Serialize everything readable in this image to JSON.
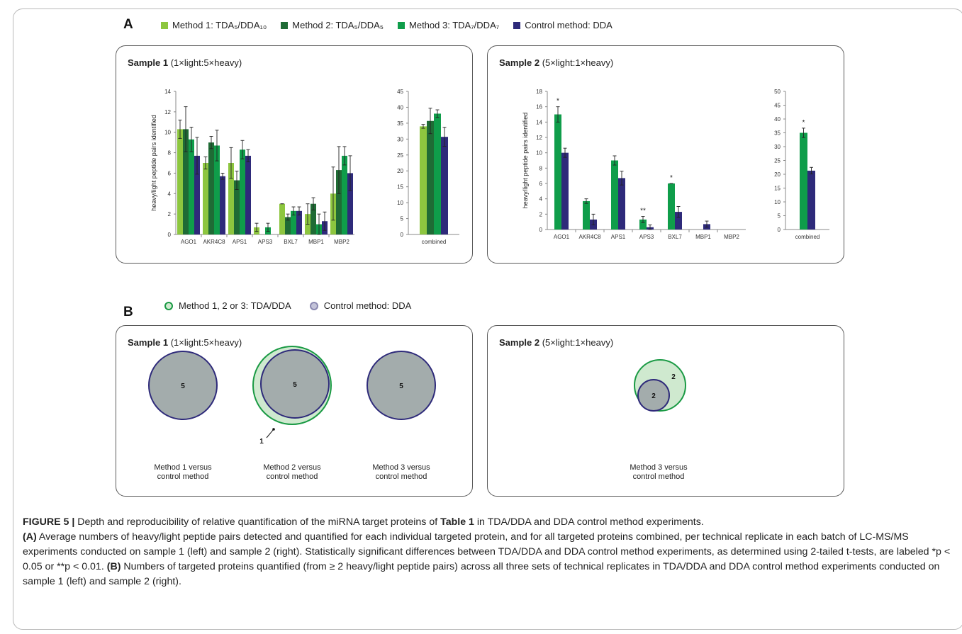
{
  "panel_a_label": "A",
  "panel_b_label": "B",
  "legend_a": [
    {
      "label": "Method 1: TDA₅/DDA₁₀",
      "color": "#8dc63f"
    },
    {
      "label": "Method 2: TDA₅/DDA₅",
      "color": "#1f6b35"
    },
    {
      "label": "Method 3: TDA₇/DDA₇",
      "color": "#0f9d4a"
    },
    {
      "label": "Control method: DDA",
      "color": "#2e2a7a"
    }
  ],
  "legend_b": [
    {
      "label": "Method 1, 2 or 3: TDA/DDA",
      "fill": "#cfe9cf",
      "stroke": "#1a9a44"
    },
    {
      "label": "Control method: DDA",
      "fill": "#c3c3d8",
      "stroke": "#8a88b0"
    }
  ],
  "samples": {
    "s1_name": "Sample 1",
    "s1_ratio": "(1×light:5×heavy)",
    "s2_name": "Sample 2",
    "s2_ratio": "(5×light:1×heavy)"
  },
  "chart_data": [
    {
      "type": "bar",
      "title": "Sample 1 (1×light:5×heavy)",
      "ylabel": "heavy/light peptide pairs identified",
      "categories": [
        "AGO1",
        "AKR4C8",
        "APS1",
        "APS3",
        "BXL7",
        "MBP1",
        "MBP2"
      ],
      "ylim": [
        0,
        14
      ],
      "yticks": [
        0,
        2,
        4,
        6,
        8,
        10,
        12,
        14
      ],
      "series": [
        {
          "name": "Method 1: TDA5/DDA10",
          "values": [
            10.3,
            7.0,
            7.0,
            0.7,
            3.0,
            2.0,
            4.0
          ],
          "errors": [
            0.9,
            0.6,
            1.5,
            0.4,
            0.0,
            1.0,
            2.6
          ]
        },
        {
          "name": "Method 2: TDA5/DDA5",
          "values": [
            10.3,
            9.0,
            5.3,
            0.0,
            1.7,
            3.0,
            6.3
          ],
          "errors": [
            2.2,
            0.6,
            0.9,
            0.0,
            0.3,
            0.6,
            2.3
          ]
        },
        {
          "name": "Method 3: TDA7/DDA7",
          "values": [
            9.3,
            8.7,
            8.3,
            0.7,
            2.3,
            1.0,
            7.7
          ],
          "errors": [
            1.2,
            1.5,
            0.9,
            0.4,
            0.4,
            1.0,
            0.9
          ]
        },
        {
          "name": "Control method: DDA",
          "values": [
            7.7,
            5.7,
            7.7,
            0.0,
            2.3,
            1.3,
            6.0
          ],
          "errors": [
            1.8,
            0.3,
            0.6,
            0.0,
            0.4,
            0.9,
            1.7
          ]
        }
      ]
    },
    {
      "type": "bar",
      "categories": [
        "combined"
      ],
      "ylim": [
        0,
        45
      ],
      "yticks": [
        0,
        5,
        10,
        15,
        20,
        25,
        30,
        35,
        40,
        45
      ],
      "series": [
        {
          "name": "Method 1: TDA5/DDA10",
          "values": [
            34.0
          ],
          "errors": [
            0.6
          ]
        },
        {
          "name": "Method 2: TDA5/DDA5",
          "values": [
            35.7
          ],
          "errors": [
            4.0
          ]
        },
        {
          "name": "Method 3: TDA7/DDA7",
          "values": [
            38.0
          ],
          "errors": [
            1.2
          ]
        },
        {
          "name": "Control method: DDA",
          "values": [
            30.7
          ],
          "errors": [
            3.0
          ]
        }
      ]
    },
    {
      "type": "bar",
      "title": "Sample 2 (5×light:1×heavy)",
      "ylabel": "heavy/light peptide pairs identified",
      "categories": [
        "AGO1",
        "AKR4C8",
        "APS1",
        "APS3",
        "BXL7",
        "MBP1",
        "MBP2"
      ],
      "ylim": [
        0,
        18
      ],
      "yticks": [
        0,
        2,
        4,
        6,
        8,
        10,
        12,
        14,
        16,
        18
      ],
      "series": [
        {
          "name": "Method 3: TDA7/DDA7",
          "values": [
            15.0,
            3.7,
            9.0,
            1.3,
            6.0,
            0.0,
            0.0
          ],
          "errors": [
            1.0,
            0.3,
            0.6,
            0.4,
            0.0,
            0.0,
            0.0
          ]
        },
        {
          "name": "Control method: DDA",
          "values": [
            10.0,
            1.3,
            6.7,
            0.3,
            2.3,
            0.7,
            0.0
          ],
          "errors": [
            0.6,
            0.7,
            0.9,
            0.3,
            0.7,
            0.4,
            0.0
          ]
        }
      ],
      "annotations": [
        "*",
        "",
        "",
        "**",
        "*",
        "",
        ""
      ]
    },
    {
      "type": "bar",
      "categories": [
        "combined"
      ],
      "ylim": [
        0,
        50
      ],
      "yticks": [
        0,
        5,
        10,
        15,
        20,
        25,
        30,
        35,
        40,
        45,
        50
      ],
      "series": [
        {
          "name": "Method 3: TDA7/DDA7",
          "values": [
            35.0
          ],
          "errors": [
            1.7
          ]
        },
        {
          "name": "Control method: DDA",
          "values": [
            21.3
          ],
          "errors": [
            1.2
          ]
        }
      ],
      "annotations": [
        "*"
      ]
    }
  ],
  "venn_s1": [
    {
      "label": "Method 1 versus\ncontrol method",
      "center": "5",
      "extra": ""
    },
    {
      "label": "Method 2 versus\ncontrol method",
      "center": "5",
      "extra": "1"
    },
    {
      "label": "Method 3 versus\ncontrol method",
      "center": "5",
      "extra": ""
    }
  ],
  "venn_s2": [
    {
      "label": "Method 3 versus\ncontrol method",
      "center": "2",
      "extra": "2"
    }
  ],
  "caption": {
    "fig_label": "FIGURE 5 |",
    "line1_a": " Depth and reproducibility of relative quantification of the miRNA target proteins of ",
    "table_ref": "Table 1",
    "line1_b": " in TDA/DDA and DDA control method experiments.",
    "a_label": "(A)",
    "a_text": " Average numbers of heavy/light peptide pairs detected and quantified for each individual targeted protein, and for all targeted proteins combined, per technical replicate in each batch of LC-MS/MS experiments conducted on sample 1 (left) and sample 2 (right). Statistically significant differences between TDA/DDA and DDA control method experiments, as determined using 2-tailed t-tests, are labeled *p < 0.05 or **p < 0.01.",
    "b_label": "(B)",
    "b_text": " Numbers of targeted proteins quantified (from ≥ 2 heavy/light peptide pairs) across all three sets of technical replicates in TDA/DDA and DDA control method experiments conducted on sample 1 (left) and sample 2 (right)."
  }
}
